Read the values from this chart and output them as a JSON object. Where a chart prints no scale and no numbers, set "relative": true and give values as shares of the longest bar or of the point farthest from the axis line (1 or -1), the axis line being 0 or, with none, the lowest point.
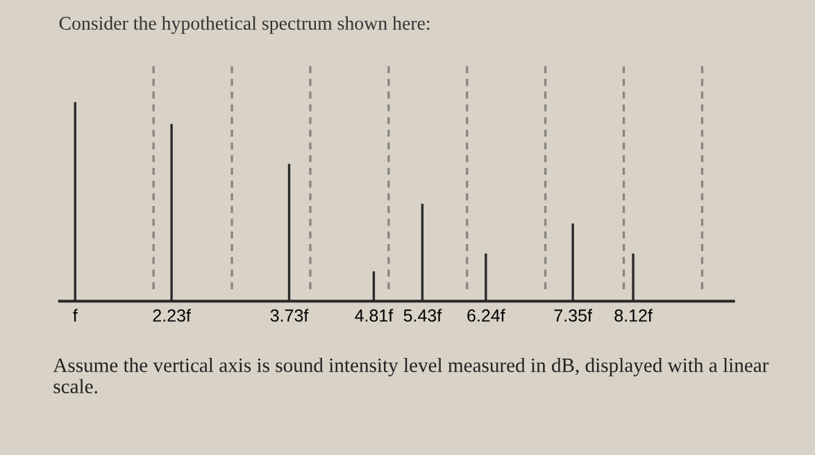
{
  "chart_data": {
    "type": "bar",
    "title": "Consider the hypothetical spectrum shown here:",
    "x": [
      1,
      2.23,
      3.73,
      4.81,
      5.43,
      6.24,
      7.35,
      8.12
    ],
    "series": [
      {
        "color": "#2a2a2a",
        "values": [
          1,
          0.89,
          0.69,
          0.15,
          0.49,
          0.24,
          0.39,
          0.24
        ]
      }
    ],
    "relative": true,
    "xlim": [
      0.8,
      9.4
    ],
    "xticks": [
      {
        "value": 1,
        "label": "f"
      },
      {
        "value": 2.23,
        "label": "2.23f"
      },
      {
        "value": 3.73,
        "label": "3.73f"
      },
      {
        "value": 4.81,
        "label": "4.81f"
      },
      {
        "value": 5.43,
        "label": "5.43f"
      },
      {
        "value": 6.24,
        "label": "6.24f"
      },
      {
        "value": 7.35,
        "label": "7.35f"
      },
      {
        "value": 8.12,
        "label": "8.12f"
      }
    ],
    "ref_lines": [
      {
        "axis": "x",
        "value": 2,
        "color": "#8a8580",
        "line_style": "dashed"
      },
      {
        "axis": "x",
        "value": 3,
        "color": "#8a8580",
        "line_style": "dashed"
      },
      {
        "axis": "x",
        "value": 4,
        "color": "#8a8580",
        "line_style": "dashed"
      },
      {
        "axis": "x",
        "value": 5,
        "color": "#8a8580",
        "line_style": "dashed"
      },
      {
        "axis": "x",
        "value": 6,
        "color": "#8a8580",
        "line_style": "dashed"
      },
      {
        "axis": "x",
        "value": 7,
        "color": "#8a8580",
        "line_style": "dashed"
      },
      {
        "axis": "x",
        "value": 8,
        "color": "#8a8580",
        "line_style": "dashed"
      },
      {
        "axis": "x",
        "value": 9,
        "color": "#8a8580",
        "line_style": "dashed"
      }
    ],
    "annotations": [
      "Assume the vertical axis is sound intensity level measured in dB, displayed with a linear scale."
    ],
    "tick_labels": "x",
    "grid": false,
    "legend": false
  }
}
